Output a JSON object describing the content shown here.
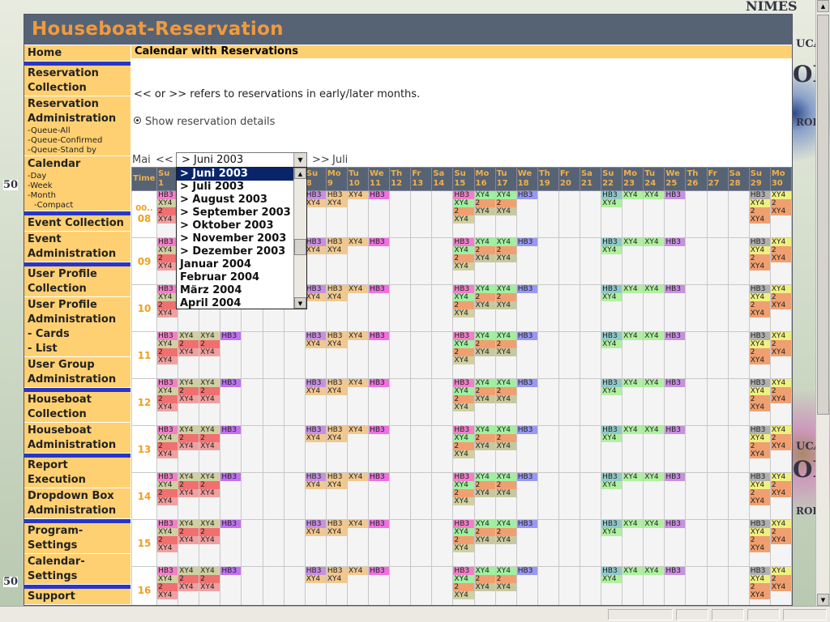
{
  "app_title": "Houseboat-Reservation",
  "bg_text": {
    "top": "NIMES",
    "side1": "UCA",
    "side2": "OE",
    "side3": "ROI",
    "side4": "UCA",
    "side5": "OE",
    "side6": "ROI",
    "left": "50",
    "left2": "50"
  },
  "nav": [
    {
      "id": "home",
      "label": "Home"
    },
    {
      "id": "reservation-collection",
      "label": "Reservation Collection",
      "blue": true
    },
    {
      "id": "reservation-administration",
      "label": "Reservation Administration",
      "subs": [
        "-Queue-All",
        "-Queue-Confirmed",
        "-Queue-Stand by"
      ]
    },
    {
      "id": "calendar",
      "label": "Calendar",
      "subs": [
        "-Day",
        "-Week",
        "-Month"
      ],
      "subsub": [
        "-Compact"
      ]
    },
    {
      "id": "event-collection",
      "label": "Event Collection",
      "blue": true
    },
    {
      "id": "event-administration",
      "label": "Event Administration"
    },
    {
      "id": "user-profile-collection",
      "label": "User Profile Collection",
      "blue": true
    },
    {
      "id": "user-profile-administration",
      "label": "User Profile Administration",
      "bold_subs": [
        "- Cards",
        "- List"
      ]
    },
    {
      "id": "user-group-administration",
      "label": "User Group Administration"
    },
    {
      "id": "houseboat-collection",
      "label": "Houseboat Collection",
      "blue": true
    },
    {
      "id": "houseboat-administration",
      "label": "Houseboat Administration"
    },
    {
      "id": "report-execution",
      "label": "Report Execution",
      "blue": true
    },
    {
      "id": "dropdown-box-administration",
      "label": "Dropdown Box Administration"
    },
    {
      "id": "program-settings",
      "label": "Program-Settings",
      "blue": true
    },
    {
      "id": "calendar-settings",
      "label": "Calendar-Settings"
    },
    {
      "id": "support",
      "label": "Support",
      "blue": true
    },
    {
      "id": "documentation",
      "label": "Documentation"
    }
  ],
  "page_title": "Calendar with Reservations",
  "hint": "<< or >> refers to reservations in early/later months.",
  "details_label": "Show reservation details",
  "month_nav": {
    "prev_month": "Mai",
    "prev_link": "<<",
    "selected": "> Juni 2003",
    "next_link": ">>",
    "next_month": "Juli"
  },
  "month_options": [
    "> Juni 2003",
    "> Juli 2003",
    "> August 2003",
    "> September 2003",
    "> Oktober 2003",
    "> November 2003",
    "> Dezember 2003",
    "Januar 2004",
    "Februar 2004",
    "März 2004",
    "April 2004"
  ],
  "calendar": {
    "time_header": "Time",
    "days": [
      {
        "wd": "Su",
        "d": "1"
      },
      {
        "wd": "Mo",
        "d": "2"
      },
      {
        "wd": "Tu",
        "d": "3"
      },
      {
        "wd": "We",
        "d": "4"
      },
      {
        "wd": "Th",
        "d": "5"
      },
      {
        "wd": "Fr",
        "d": "6"
      },
      {
        "wd": "Sa",
        "d": "7"
      },
      {
        "wd": "Su",
        "d": "8"
      },
      {
        "wd": "Mo",
        "d": "9"
      },
      {
        "wd": "Tu",
        "d": "10"
      },
      {
        "wd": "We",
        "d": "11"
      },
      {
        "wd": "Th",
        "d": "12"
      },
      {
        "wd": "Fr",
        "d": "13"
      },
      {
        "wd": "Sa",
        "d": "14"
      },
      {
        "wd": "Su",
        "d": "15"
      },
      {
        "wd": "Mo",
        "d": "16"
      },
      {
        "wd": "Tu",
        "d": "17"
      },
      {
        "wd": "We",
        "d": "18"
      },
      {
        "wd": "Th",
        "d": "19"
      },
      {
        "wd": "Fr",
        "d": "20"
      },
      {
        "wd": "Sa",
        "d": "21"
      },
      {
        "wd": "Su",
        "d": "22"
      },
      {
        "wd": "Mo",
        "d": "23"
      },
      {
        "wd": "Tu",
        "d": "24"
      },
      {
        "wd": "We",
        "d": "25"
      },
      {
        "wd": "Th",
        "d": "26"
      },
      {
        "wd": "Fr",
        "d": "27"
      },
      {
        "wd": "Sa",
        "d": "28"
      },
      {
        "wd": "Su",
        "d": "29"
      },
      {
        "wd": "Mo",
        "d": "30"
      }
    ],
    "rows": [
      "08",
      "09",
      "10",
      "11",
      "12",
      "13",
      "14",
      "15",
      "16"
    ],
    "first_row_prefix": "00..",
    "day_tags": {
      "1": [
        [
          "HB3",
          "#f080c8"
        ],
        [
          "XY4",
          "#d0d0a0"
        ],
        [
          "2",
          "#f07070"
        ],
        [
          "XY4",
          "#f0a0a0"
        ]
      ],
      "2": [
        [
          "XY4",
          "#d0d0a0"
        ],
        [
          "2",
          "#f07070"
        ],
        [
          "XY4",
          "#f0a0a0"
        ]
      ],
      "3": [
        [
          "XY4",
          "#d0d0a0"
        ],
        [
          "2",
          "#f07070"
        ],
        [
          "XY4",
          "#f0a0a0"
        ]
      ],
      "4": [
        [
          "HB3",
          "#c070f0"
        ]
      ],
      "8": [
        [
          "HB3",
          "#c890e0"
        ],
        [
          "XY4",
          "#f0c890"
        ]
      ],
      "9": [
        [
          "HB3",
          "#f0c890"
        ],
        [
          "XY4",
          "#f0c890"
        ]
      ],
      "10": [
        [
          "XY4",
          "#f0c890"
        ]
      ],
      "11": [
        [
          "HB3",
          "#f070e0"
        ]
      ],
      "15": [
        [
          "HB3",
          "#f080c8"
        ],
        [
          "XY4",
          "#a0f0a0"
        ],
        [
          "2",
          "#f0a070"
        ],
        [
          "XY4",
          "#d0d0a0"
        ]
      ],
      "16": [
        [
          "XY4",
          "#a0f0a0"
        ],
        [
          "2",
          "#f0a070"
        ],
        [
          "XY4",
          "#c8c8a0"
        ]
      ],
      "17": [
        [
          "XY4",
          "#a0f0a0"
        ],
        [
          "2",
          "#f0a070"
        ],
        [
          "XY4",
          "#c8c8a0"
        ]
      ],
      "18": [
        [
          "HB3",
          "#9898f0"
        ]
      ],
      "22": [
        [
          "HB3",
          "#90c8c8"
        ],
        [
          "XY4",
          "#b0f0a0"
        ]
      ],
      "23": [
        [
          "XY4",
          "#b0f0a0"
        ]
      ],
      "24": [
        [
          "XY4",
          "#b0f0a0"
        ]
      ],
      "25": [
        [
          "HB3",
          "#c890e0"
        ]
      ],
      "29": [
        [
          "HB3",
          "#b0b0b0"
        ],
        [
          "XY4",
          "#f0f080"
        ],
        [
          "2",
          "#f0a070"
        ],
        [
          "XY4",
          "#f0a070"
        ]
      ],
      "30": [
        [
          "XY4",
          "#f0f080"
        ],
        [
          "2",
          "#f0a070"
        ],
        [
          "XY4",
          "#f0a070"
        ]
      ]
    }
  }
}
